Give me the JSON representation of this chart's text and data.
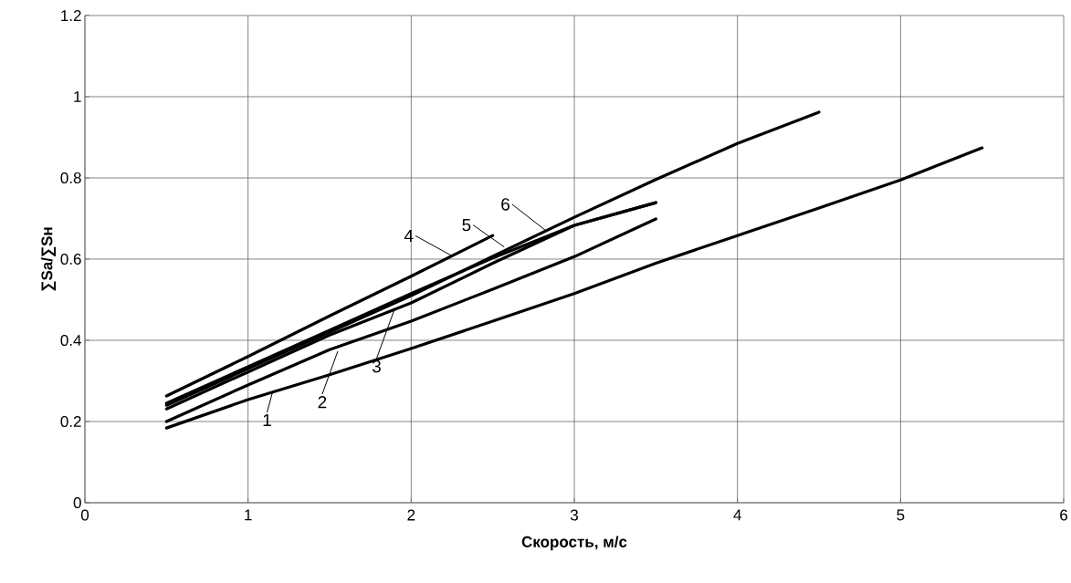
{
  "chart_data": {
    "type": "line",
    "xlabel": "Скорость, м/с",
    "ylabel": "∑Sa/∑Sн",
    "xlim": [
      0,
      6
    ],
    "xticks": [
      0,
      1,
      2,
      3,
      4,
      5,
      6
    ],
    "ylim": [
      0,
      1.2
    ],
    "yticks": [
      0,
      0.2,
      0.4,
      0.6,
      0.8,
      1,
      1.2
    ],
    "grid": true,
    "marker": "none",
    "line_style": "solid",
    "series": [
      {
        "color": "#000000",
        "x": [
          0.5,
          1,
          1.5,
          2,
          2.5,
          3,
          3.5,
          4,
          4.5,
          5,
          5.5
        ],
        "values": [
          0.184,
          0.254,
          0.315,
          0.38,
          0.447,
          0.515,
          0.59,
          0.658,
          0.726,
          0.795,
          0.874
        ]
      },
      {
        "color": "#000000",
        "x": [
          0.5,
          1,
          1.5,
          2,
          2.5,
          3,
          3.5
        ],
        "values": [
          0.2,
          0.29,
          0.377,
          0.447,
          0.526,
          0.606,
          0.699
        ]
      },
      {
        "color": "#000000",
        "x": [
          0.5,
          1,
          1.5,
          2,
          2.5,
          3,
          3.5
        ],
        "values": [
          0.231,
          0.322,
          0.413,
          0.492,
          0.59,
          0.683,
          0.739
        ]
      },
      {
        "color": "#000000",
        "x": [
          0.5,
          1,
          1.5,
          2,
          2.5
        ],
        "values": [
          0.263,
          0.36,
          0.46,
          0.558,
          0.658
        ]
      },
      {
        "color": "#000000",
        "x": [
          0.5,
          1,
          1.5,
          2,
          2.5,
          3,
          3.5,
          4,
          4.5
        ],
        "values": [
          0.24,
          0.33,
          0.42,
          0.51,
          0.607,
          0.703,
          0.796,
          0.885,
          0.962
        ]
      },
      {
        "color": "#000000",
        "x": [
          0.5,
          1,
          1.5,
          2,
          2.5,
          3,
          3.5
        ],
        "values": [
          0.245,
          0.335,
          0.425,
          0.515,
          0.603,
          0.683,
          0.739
        ]
      }
    ],
    "annotations": [
      {
        "text": "1",
        "x": 1.15,
        "y": 0.272
      },
      {
        "text": "2",
        "x": 1.55,
        "y": 0.373
      },
      {
        "text": "3",
        "x": 1.9,
        "y": 0.479
      },
      {
        "text": "4",
        "x": 2.25,
        "y": 0.608
      },
      {
        "text": "5",
        "x": 2.57,
        "y": 0.63
      },
      {
        "text": "6",
        "x": 2.82,
        "y": 0.672
      }
    ]
  }
}
